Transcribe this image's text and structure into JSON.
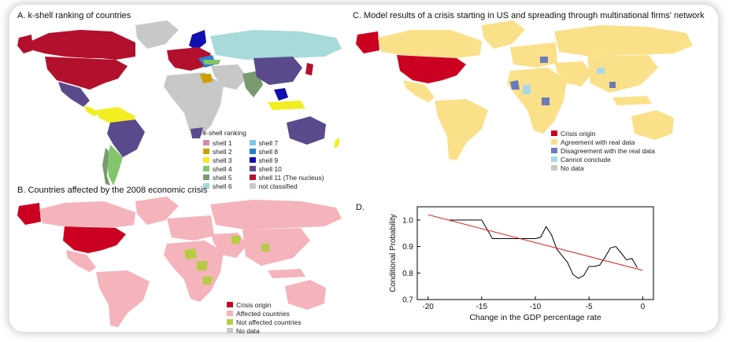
{
  "panels": {
    "a": {
      "title": "A. k-shell ranking of countries"
    },
    "b": {
      "title": "B. Countries affected by the 2008 economic crisis"
    },
    "c": {
      "title": "C. Model results of a crisis starting in US and spreading through multinational firms' network"
    },
    "d": {
      "label": "D."
    }
  },
  "legend_a": {
    "title": "k-shell ranking",
    "col1": [
      {
        "label": "shell 1",
        "color": "#d98aa8"
      },
      {
        "label": "shell 2",
        "color": "#c9a000"
      },
      {
        "label": "shell 3",
        "color": "#f2ee22"
      },
      {
        "label": "shell 4",
        "color": "#84c56b"
      },
      {
        "label": "shell 5",
        "color": "#7a9a6f"
      },
      {
        "label": "shell 6",
        "color": "#a8dada"
      }
    ],
    "col2": [
      {
        "label": "shell 7",
        "color": "#7ec8ea"
      },
      {
        "label": "shell 8",
        "color": "#2b7fd0"
      },
      {
        "label": "shell 9",
        "color": "#1010b0"
      },
      {
        "label": "shell 10",
        "color": "#5a4a8c"
      },
      {
        "label": "shell 11 (The nucleus)",
        "color": "#b3102e"
      },
      {
        "label": "not classified",
        "color": "#c8c8c8"
      }
    ]
  },
  "legend_b": [
    {
      "label": "Crisis origin",
      "color": "#cc0020"
    },
    {
      "label": "Affected countries",
      "color": "#f5b3bb"
    },
    {
      "label": "Not affected countries",
      "color": "#b5cc40"
    },
    {
      "label": "No data",
      "color": "#c8c8c8"
    }
  ],
  "legend_c": [
    {
      "label": "Crisis origin",
      "color": "#cc0020"
    },
    {
      "label": "Agreement with real data",
      "color": "#fbe08a"
    },
    {
      "label": "Disagreement with the real data",
      "color": "#6a7bb8"
    },
    {
      "label": "Cannot conclude",
      "color": "#a8d8e8"
    },
    {
      "label": "No data",
      "color": "#c8c8c8"
    }
  ],
  "chart_data": {
    "type": "line",
    "xlabel": "Change in the GDP percentage rate",
    "ylabel": "Conditional Probability",
    "xlim": [
      -21,
      1
    ],
    "ylim": [
      0.7,
      1.05
    ],
    "xticks": [
      -20,
      -15,
      -10,
      -5,
      0
    ],
    "yticks": [
      0.7,
      0.8,
      0.9,
      1.0
    ],
    "series": [
      {
        "color": "#000000",
        "x": [
          -18,
          -17,
          -16,
          -15,
          -14.5,
          -14,
          -13,
          -12,
          -11,
          -10,
          -9.5,
          -9,
          -8.5,
          -8,
          -7,
          -6.5,
          -6,
          -5.5,
          -5,
          -4.5,
          -4,
          -3.5,
          -3,
          -2.5,
          -2,
          -1.5,
          -1,
          -0.5
        ],
        "y": [
          1.0,
          1.0,
          1.0,
          1.0,
          0.965,
          0.93,
          0.93,
          0.93,
          0.93,
          0.93,
          0.935,
          0.975,
          0.945,
          0.89,
          0.84,
          0.795,
          0.78,
          0.79,
          0.825,
          0.825,
          0.83,
          0.86,
          0.895,
          0.9,
          0.875,
          0.85,
          0.855,
          0.82
        ]
      },
      {
        "color": "#e02020",
        "x": [
          -20,
          0
        ],
        "y": [
          1.02,
          0.81
        ]
      }
    ]
  }
}
